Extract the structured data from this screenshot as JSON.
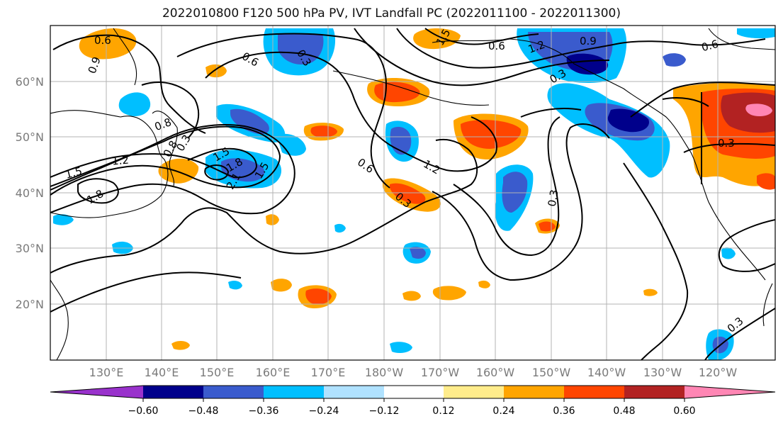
{
  "title": "2022010800 F120 500 hPa PV, IVT Landfall PC (2022011100 - 2022011300)",
  "lat_labels": [
    "60°N",
    "50°N",
    "40°N",
    "30°N",
    "20°N"
  ],
  "lon_labels": [
    "130°E",
    "140°E",
    "150°E",
    "160°E",
    "170°E",
    "180°W",
    "170°W",
    "160°W",
    "150°W",
    "140°W",
    "130°W",
    "120°W"
  ],
  "contour_labels": [
    "0.6",
    "0.9",
    "0.6",
    "0.3",
    "1.5",
    "0.6",
    "0.9",
    "1.2",
    "0.6",
    "0.8",
    "0.8",
    "0.3",
    "1.8",
    "1.5",
    "1.2",
    "1.5",
    "1.8",
    "2.1",
    "1.5",
    "0.6",
    "1.2",
    "0.3",
    "0.3",
    "0.3",
    "0.3",
    "0.3"
  ],
  "colorbar": {
    "colors": [
      "#9932cc",
      "#00008b",
      "#3a5bcd",
      "#00bfff",
      "#b0e2ff",
      "#ffffff",
      "#ffec8b",
      "#ffa500",
      "#ff4500",
      "#b22222",
      "#ff86b4"
    ],
    "tick_labels": [
      "−0.60",
      "−0.48",
      "−0.36",
      "−0.24",
      "−0.12",
      "0.12",
      "0.24",
      "0.36",
      "0.48",
      "0.60"
    ]
  },
  "map_data": {
    "projection": "PlateCarree",
    "extent": {
      "lon_min": 120,
      "lon_max": 251,
      "lat_min": 10,
      "lat_max": 70
    },
    "shading": "PC (anomaly)",
    "contours": "500 hPa PV"
  }
}
